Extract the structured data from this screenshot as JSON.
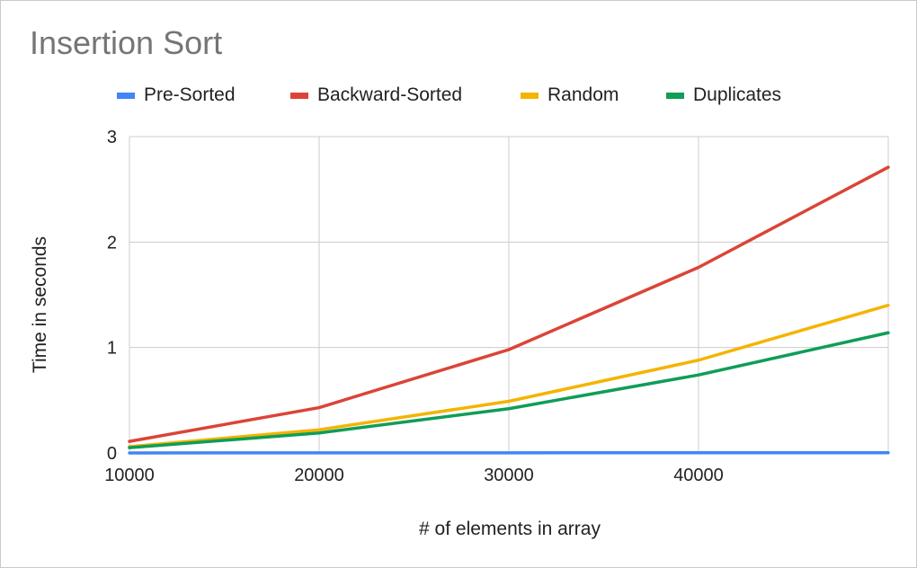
{
  "chart_data": {
    "type": "line",
    "title": "Insertion Sort",
    "xlabel": "# of elements in array",
    "ylabel": "Time in seconds",
    "x": [
      10000,
      20000,
      30000,
      40000,
      50000
    ],
    "x_ticks": [
      10000,
      20000,
      30000,
      40000
    ],
    "xlim": [
      10000,
      50000
    ],
    "y_ticks": [
      0,
      1,
      2,
      3
    ],
    "ylim": [
      0,
      3
    ],
    "grid": true,
    "legend_position": "top",
    "series": [
      {
        "name": "Pre-Sorted",
        "color": "#4285f4",
        "values": [
          0.0005,
          0.001,
          0.0015,
          0.002,
          0.0025
        ]
      },
      {
        "name": "Backward-Sorted",
        "color": "#db4437",
        "values": [
          0.11,
          0.43,
          0.98,
          1.76,
          2.71
        ]
      },
      {
        "name": "Random",
        "color": "#f4b400",
        "values": [
          0.06,
          0.22,
          0.49,
          0.88,
          1.4
        ]
      },
      {
        "name": "Duplicates",
        "color": "#0f9d58",
        "values": [
          0.05,
          0.19,
          0.42,
          0.74,
          1.14
        ]
      }
    ]
  }
}
